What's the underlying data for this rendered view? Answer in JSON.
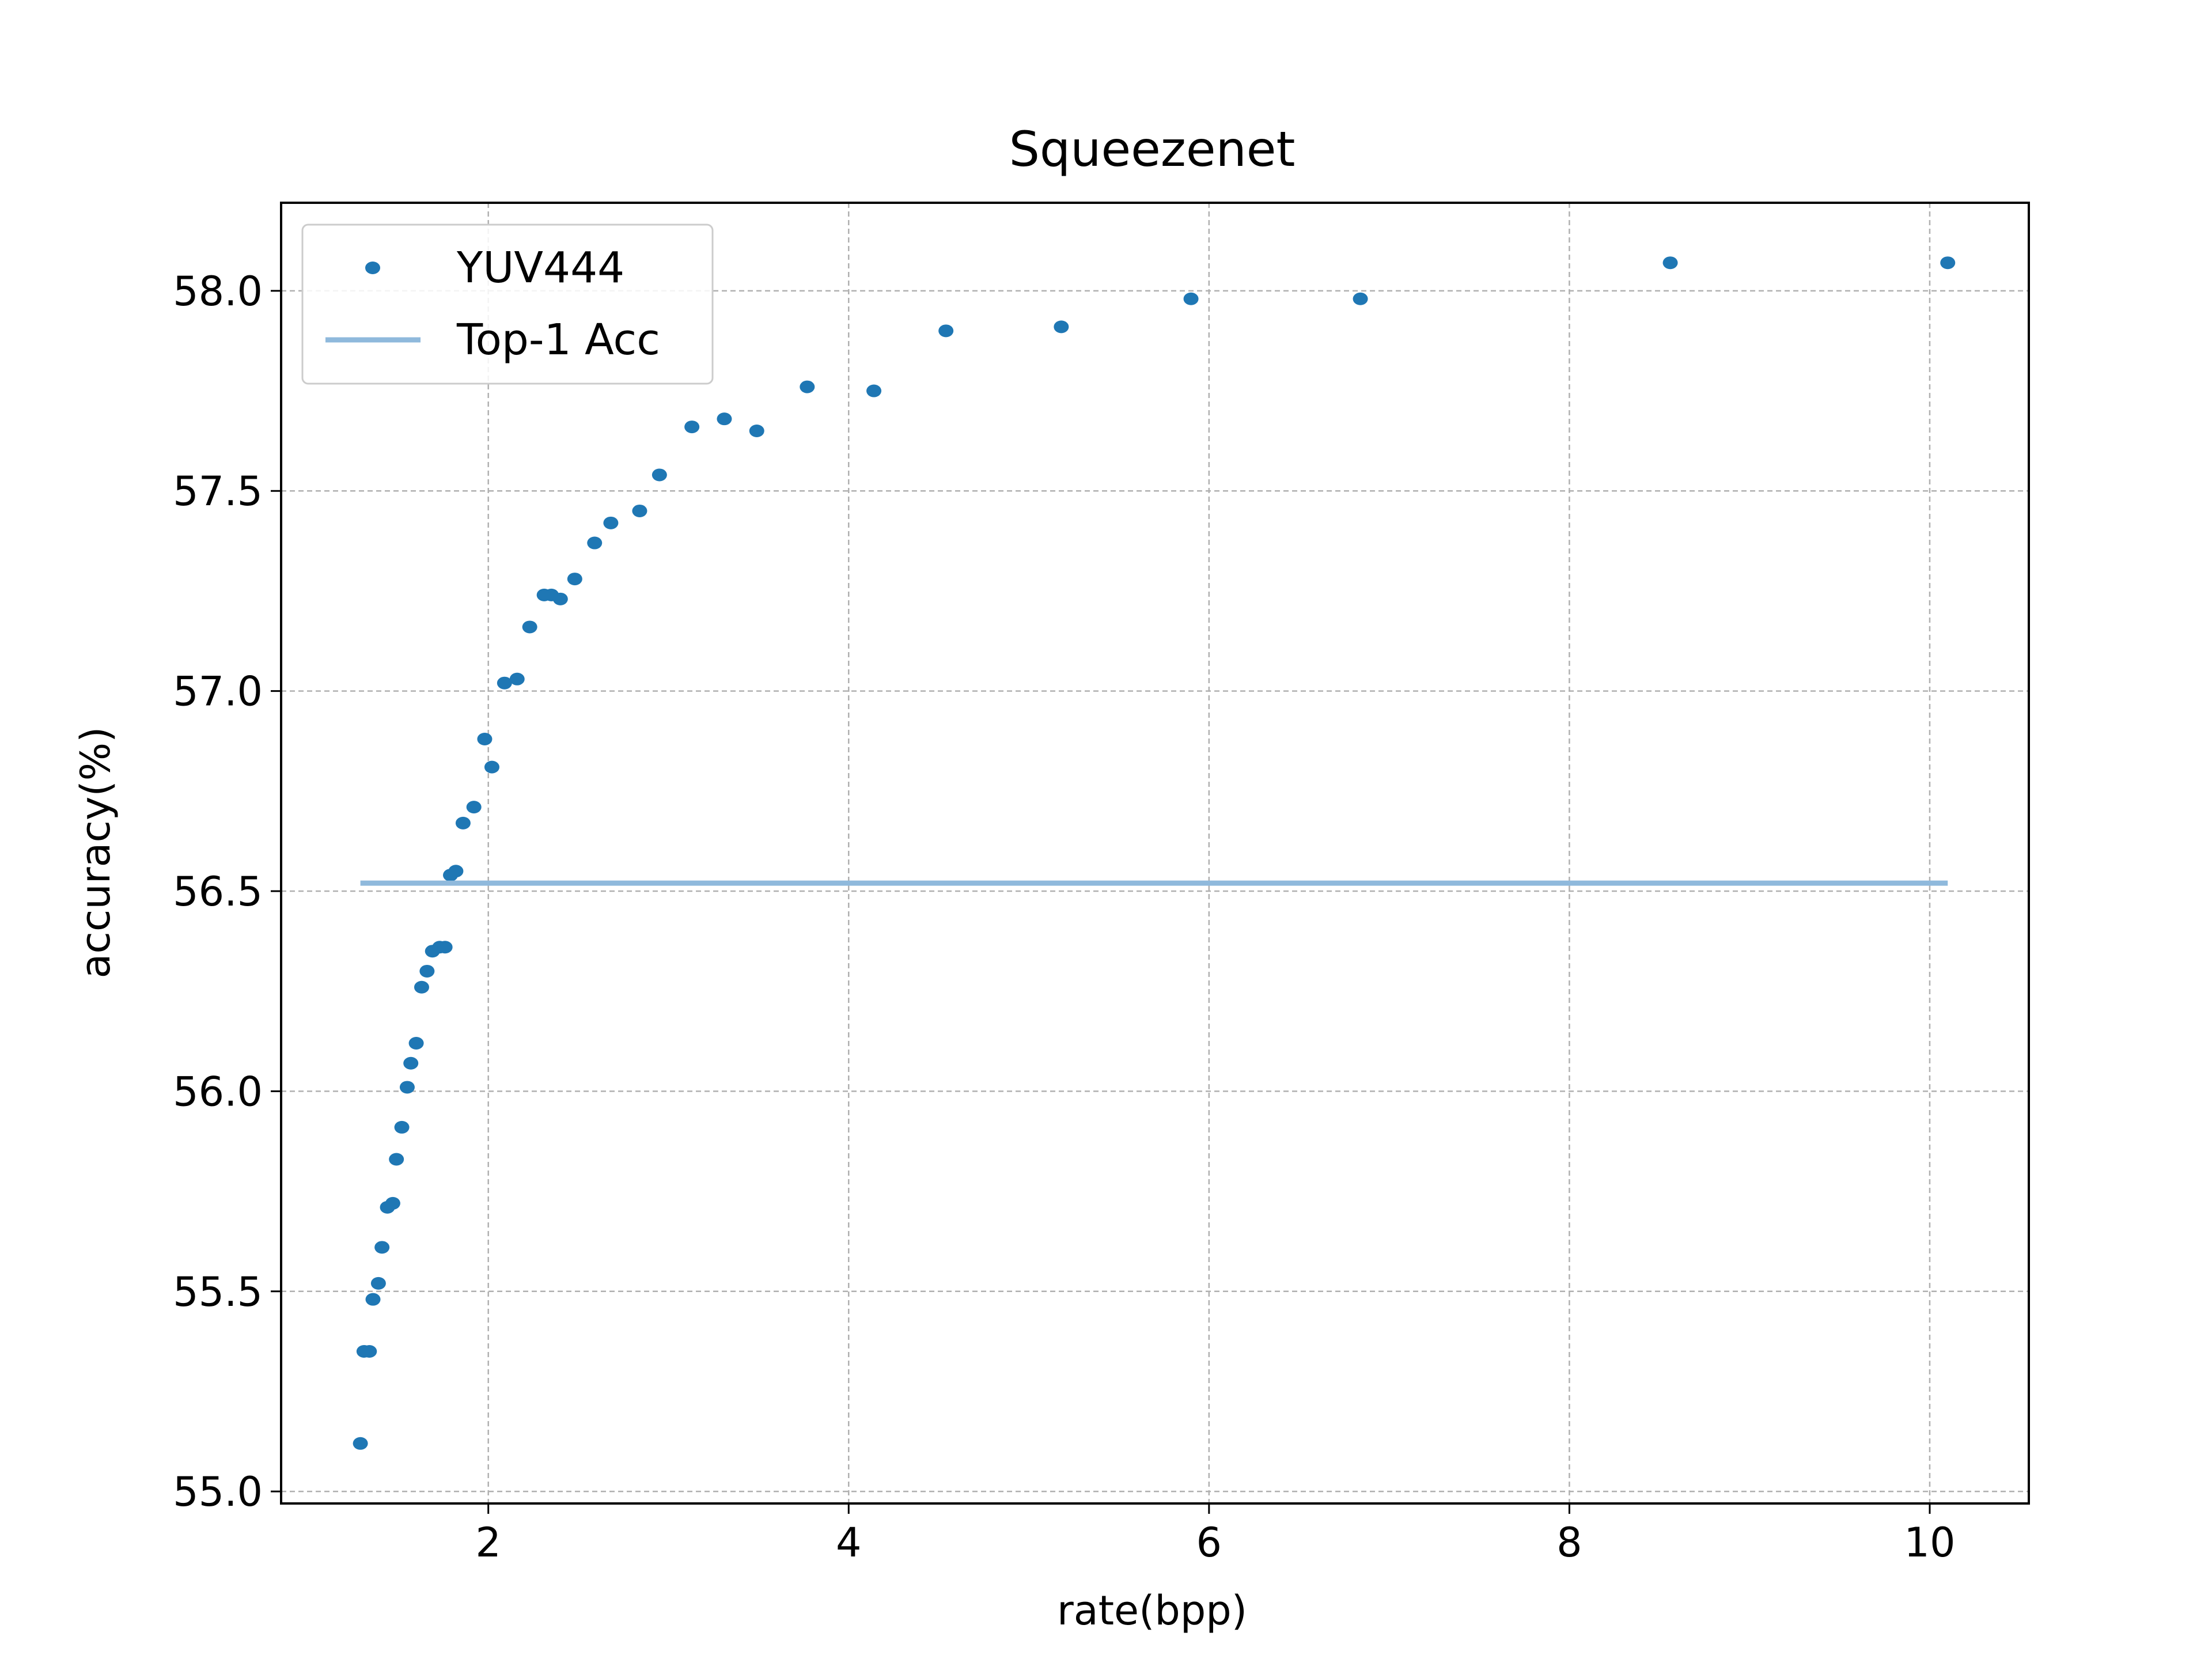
{
  "chart_data": {
    "type": "scatter",
    "title": "Squeezenet",
    "xlabel": "rate(bpp)",
    "ylabel": "accuracy(%)",
    "xlim": [
      0.85,
      10.55
    ],
    "ylim": [
      54.97,
      58.22
    ],
    "xticks": [
      2,
      4,
      6,
      8,
      10
    ],
    "yticks": [
      55.0,
      55.5,
      56.0,
      56.5,
      57.0,
      57.5,
      58.0
    ],
    "xtick_labels": [
      "2",
      "4",
      "6",
      "8",
      "10"
    ],
    "ytick_labels": [
      "55.0",
      "55.5",
      "56.0",
      "56.5",
      "57.0",
      "57.5",
      "58.0"
    ],
    "grid": true,
    "legend_position": "top-left",
    "series": [
      {
        "name": "YUV444",
        "kind": "scatter",
        "color": "#1f77b4",
        "points": [
          {
            "x": 1.29,
            "y": 55.12
          },
          {
            "x": 1.31,
            "y": 55.35
          },
          {
            "x": 1.34,
            "y": 55.35
          },
          {
            "x": 1.36,
            "y": 55.48
          },
          {
            "x": 1.39,
            "y": 55.52
          },
          {
            "x": 1.41,
            "y": 55.61
          },
          {
            "x": 1.44,
            "y": 55.71
          },
          {
            "x": 1.47,
            "y": 55.72
          },
          {
            "x": 1.49,
            "y": 55.83
          },
          {
            "x": 1.52,
            "y": 55.91
          },
          {
            "x": 1.55,
            "y": 56.01
          },
          {
            "x": 1.57,
            "y": 56.07
          },
          {
            "x": 1.6,
            "y": 56.12
          },
          {
            "x": 1.63,
            "y": 56.26
          },
          {
            "x": 1.66,
            "y": 56.3
          },
          {
            "x": 1.69,
            "y": 56.35
          },
          {
            "x": 1.73,
            "y": 56.36
          },
          {
            "x": 1.76,
            "y": 56.36
          },
          {
            "x": 1.79,
            "y": 56.54
          },
          {
            "x": 1.82,
            "y": 56.55
          },
          {
            "x": 1.86,
            "y": 56.67
          },
          {
            "x": 1.92,
            "y": 56.71
          },
          {
            "x": 1.98,
            "y": 56.88
          },
          {
            "x": 2.02,
            "y": 56.81
          },
          {
            "x": 2.09,
            "y": 57.02
          },
          {
            "x": 2.16,
            "y": 57.03
          },
          {
            "x": 2.23,
            "y": 57.16
          },
          {
            "x": 2.31,
            "y": 57.24
          },
          {
            "x": 2.35,
            "y": 57.24
          },
          {
            "x": 2.4,
            "y": 57.23
          },
          {
            "x": 2.48,
            "y": 57.28
          },
          {
            "x": 2.59,
            "y": 57.37
          },
          {
            "x": 2.68,
            "y": 57.42
          },
          {
            "x": 2.84,
            "y": 57.45
          },
          {
            "x": 2.95,
            "y": 57.54
          },
          {
            "x": 3.13,
            "y": 57.66
          },
          {
            "x": 3.31,
            "y": 57.68
          },
          {
            "x": 3.49,
            "y": 57.65
          },
          {
            "x": 3.77,
            "y": 57.76
          },
          {
            "x": 4.14,
            "y": 57.75
          },
          {
            "x": 4.54,
            "y": 57.9
          },
          {
            "x": 5.18,
            "y": 57.91
          },
          {
            "x": 5.9,
            "y": 57.98
          },
          {
            "x": 6.84,
            "y": 57.98
          },
          {
            "x": 8.56,
            "y": 58.07
          },
          {
            "x": 10.1,
            "y": 58.07
          }
        ]
      },
      {
        "name": "Top-1 Acc",
        "kind": "line",
        "color": "#8fb9dc",
        "points": [
          {
            "x": 1.29,
            "y": 56.52
          },
          {
            "x": 10.1,
            "y": 56.52
          }
        ]
      }
    ]
  }
}
